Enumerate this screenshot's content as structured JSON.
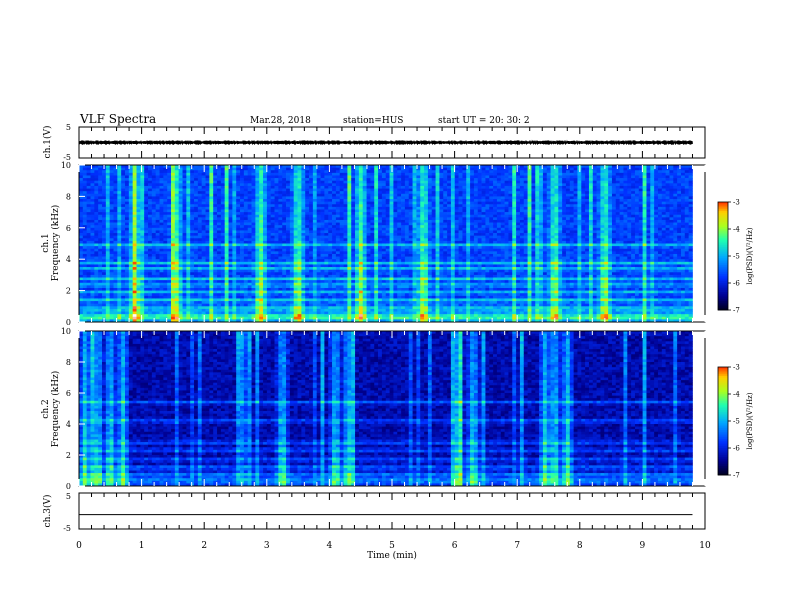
{
  "header": {
    "title": "VLF Spectra",
    "date": "Mar.28, 2018",
    "station": "station=HUS",
    "start": "start  UT  =   20: 30: 2"
  },
  "chart_data": [
    {
      "type": "line",
      "name": "waveform-ch1",
      "ylabel": "ch.1(V)",
      "ylim": [
        -5,
        5
      ],
      "yticks": [
        "5",
        "-5"
      ],
      "xlim": [
        0,
        10
      ],
      "x": [
        0,
        9.8
      ],
      "y": [
        0,
        0
      ],
      "envelope": 0.5,
      "color": "#000000"
    },
    {
      "type": "heatmap",
      "name": "spectrogram-ch1",
      "ylabel_top": "ch.1",
      "ylabel": "Frequency (kHz)",
      "ylim": [
        0,
        10
      ],
      "yticks": [
        "0",
        "2",
        "4",
        "6",
        "8",
        "10"
      ],
      "xlim": [
        0,
        10
      ],
      "data_end_min": 9.8,
      "colorbar": {
        "label": "log(PSD)(V²/Hz)",
        "range": [
          -7,
          -3
        ],
        "ticks": [
          "-3",
          "-4",
          "-5",
          "-6",
          "-7"
        ]
      },
      "bright_bursts_min": [
        0.9,
        1.55,
        2.9,
        3.5,
        4.5,
        5.5,
        7.6,
        8.4
      ],
      "bands_khz": [
        0.25,
        0.45,
        0.85,
        1.4,
        1.9,
        2.35,
        2.75,
        3.4,
        3.75,
        4.9
      ]
    },
    {
      "type": "heatmap",
      "name": "spectrogram-ch2",
      "ylabel_top": "ch.2",
      "ylabel": "Frequency (kHz)",
      "ylim": [
        0,
        10
      ],
      "yticks": [
        "0",
        "2",
        "4",
        "6",
        "8",
        "10"
      ],
      "xlim": [
        0,
        10
      ],
      "data_end_min": 9.8,
      "colorbar": {
        "label": "log(PSD)(V²/Hz)",
        "range": [
          -7,
          -3
        ],
        "ticks": [
          "-3",
          "-4",
          "-5",
          "-6",
          "-7"
        ]
      },
      "bright_bursts_min": [
        0.1,
        0.3,
        0.5,
        0.7,
        3.25,
        4.1,
        4.3,
        6.05,
        6.3,
        7.45,
        7.6,
        7.8
      ],
      "bands_khz": [
        0.35,
        0.7,
        1.2,
        1.7,
        2.3,
        2.8,
        4.2,
        5.4
      ]
    },
    {
      "type": "line",
      "name": "waveform-ch3",
      "ylabel": "ch.3(V)",
      "ylim": [
        -5,
        5
      ],
      "yticks": [
        "5",
        "-5"
      ],
      "xlim": [
        0,
        10
      ],
      "x": [
        0,
        9.8
      ],
      "y": [
        -1,
        -1
      ],
      "color": "#000000"
    }
  ],
  "xaxis": {
    "label": "Time  (min)",
    "ticks": [
      "0",
      "1",
      "2",
      "3",
      "4",
      "5",
      "6",
      "7",
      "8",
      "9",
      "10"
    ]
  }
}
